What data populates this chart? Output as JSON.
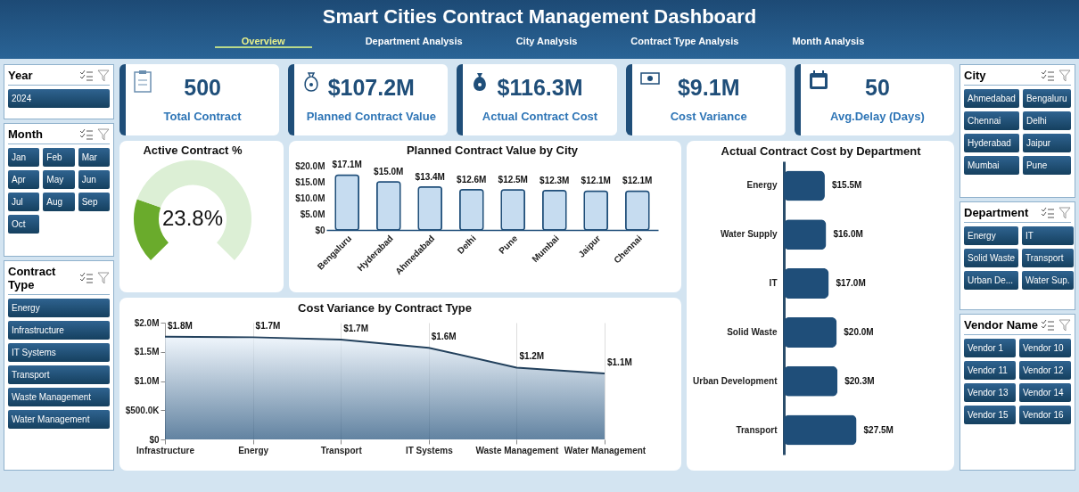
{
  "chart_data": [
    {
      "type": "other",
      "title": "Smart Cities Contract Management Dashboard",
      "annotations": [
        "Overview",
        "Department Analysis",
        "City Analysis",
        "Contract Type Analysis",
        "Month Analysis"
      ]
    },
    {
      "type": "other",
      "categories": [
        "Total Contract",
        "Planned Contract Value",
        "Actual Contract Cost",
        "Cost Variance",
        "Avg.Delay (Days)"
      ],
      "value_labels": [
        "500",
        "$107.2M",
        "$116.3M",
        "$9.1M",
        "50"
      ]
    },
    {
      "type": "other",
      "title": "Year",
      "annotations": [
        "2024"
      ]
    },
    {
      "type": "other",
      "title": "Month",
      "annotations": [
        "Jan",
        "Feb",
        "Mar",
        "Apr",
        "May",
        "Jun",
        "Jul",
        "Aug",
        "Sep",
        "Oct"
      ]
    },
    {
      "type": "other",
      "title": "Contract Type",
      "annotations": [
        "Energy",
        "Infrastructure",
        "IT Systems",
        "Transport",
        "Waste Management",
        "Water Management"
      ]
    },
    {
      "type": "other",
      "title": "City",
      "annotations": [
        "Ahmedabad",
        "Bengaluru",
        "Chennai",
        "Delhi",
        "Hyderabad",
        "Jaipur",
        "Mumbai",
        "Pune"
      ]
    },
    {
      "type": "other",
      "title": "Department",
      "annotations": [
        "Energy",
        "IT",
        "Solid Waste",
        "Transport",
        "Urban De...",
        "Water Sup."
      ]
    },
    {
      "type": "other",
      "title": "Vendor Name",
      "annotations": [
        "Vendor 1",
        "Vendor 10",
        "Vendor 11",
        "Vendor 12",
        "Vendor 13",
        "Vendor 14",
        "Vendor 15",
        "Vendor 16"
      ]
    },
    {
      "type": "donut",
      "title": "Active Contract %",
      "categories": [
        null,
        null
      ],
      "values": [
        23.8,
        76.2
      ],
      "colors": [
        "#6aab2c",
        "#dcefd5"
      ],
      "annotations": [
        "23.8%"
      ]
    },
    {
      "type": "bar",
      "title": "Planned Contract Value by City",
      "categories": [
        "Bengaluru",
        "Hyderabad",
        "Ahmedabad",
        "Delhi",
        "Pune",
        "Mumbai",
        "Jaipur",
        "Chennai"
      ],
      "values": [
        17.1,
        15.0,
        13.4,
        12.6,
        12.5,
        12.3,
        12.1,
        12.1
      ],
      "value_labels": [
        "$17.1M",
        "$15.0M",
        "$13.4M",
        "$12.6M",
        "$12.5M",
        "$12.3M",
        "$12.1M",
        "$12.1M"
      ],
      "color": "#c6dcf0",
      "ylim": [
        0,
        20
      ],
      "yticks": [
        {
          "value": 0,
          "label": "$0"
        },
        {
          "value": 5,
          "label": "$5.0M"
        },
        {
          "value": 10,
          "label": "$10.0M"
        },
        {
          "value": 15,
          "label": "$15.0M"
        },
        {
          "value": 20,
          "label": "$20.0M"
        }
      ]
    },
    {
      "type": "bar",
      "title": "Actual Contract Cost by Department",
      "orientation": "horizontal",
      "categories": [
        "Energy",
        "Water Supply",
        "IT",
        "Solid Waste",
        "Urban Development",
        "Transport"
      ],
      "values": [
        15.5,
        16.0,
        17.0,
        20.0,
        20.3,
        27.5
      ],
      "value_labels": [
        "$15.5M",
        "$16.0M",
        "$17.0M",
        "$20.0M",
        "$20.3M",
        "$27.5M"
      ],
      "color": "#1f4e79"
    },
    {
      "type": "area",
      "title": "Cost Variance by Contract Type",
      "categories": [
        "Infrastructure",
        "Energy",
        "Transport",
        "IT Systems",
        "Waste Management",
        "Water Management"
      ],
      "values": [
        1760000,
        1750000,
        1710000,
        1570000,
        1230000,
        1130000
      ],
      "value_labels": [
        "$1.8M",
        "$1.7M",
        "$1.7M",
        "$1.6M",
        "$1.2M",
        "$1.1M"
      ],
      "color": "#1f4e79",
      "ylim": [
        0,
        2000000
      ],
      "yticks": [
        {
          "value": 0,
          "label": "$0"
        },
        {
          "value": 500000,
          "label": "$500.0K"
        },
        {
          "value": 1000000,
          "label": "$1.0M"
        },
        {
          "value": 1500000,
          "label": "$1.5M"
        },
        {
          "value": 2000000,
          "label": "$2.0M"
        }
      ],
      "grid": "x"
    }
  ]
}
